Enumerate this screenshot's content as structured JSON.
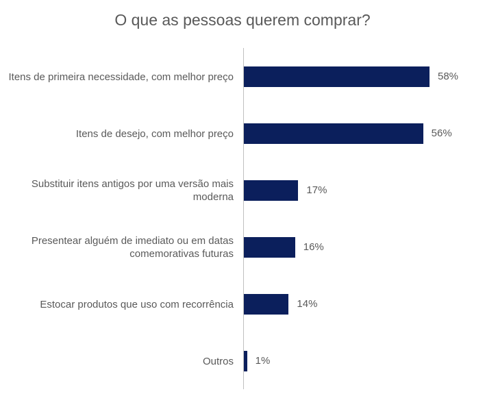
{
  "chart_data": {
    "type": "bar",
    "orientation": "horizontal",
    "title": "O que as pessoas querem comprar?",
    "categories": [
      "Itens de primeira necessidade, com melhor preço",
      "Itens de desejo, com melhor preço",
      "Substituir itens antigos por uma versão mais moderna",
      "Presentear alguém de imediato ou em datas comemorativas futuras",
      "Estocar produtos que uso com recorrência",
      "Outros"
    ],
    "values": [
      58,
      56,
      17,
      16,
      14,
      1
    ],
    "value_labels": [
      "58%",
      "56%",
      "17%",
      "16%",
      "14%",
      "1%"
    ],
    "color": "#0b1f5c"
  }
}
